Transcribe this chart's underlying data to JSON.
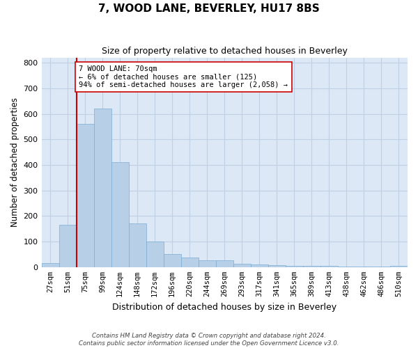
{
  "title": "7, WOOD LANE, BEVERLEY, HU17 8BS",
  "subtitle": "Size of property relative to detached houses in Beverley",
  "xlabel": "Distribution of detached houses by size in Beverley",
  "ylabel": "Number of detached properties",
  "footer_line1": "Contains HM Land Registry data © Crown copyright and database right 2024.",
  "footer_line2": "Contains public sector information licensed under the Open Government Licence v3.0.",
  "categories": [
    "27sqm",
    "51sqm",
    "75sqm",
    "99sqm",
    "124sqm",
    "148sqm",
    "172sqm",
    "196sqm",
    "220sqm",
    "244sqm",
    "269sqm",
    "293sqm",
    "317sqm",
    "341sqm",
    "365sqm",
    "389sqm",
    "413sqm",
    "438sqm",
    "462sqm",
    "486sqm",
    "510sqm"
  ],
  "values": [
    15,
    165,
    560,
    620,
    410,
    170,
    100,
    50,
    38,
    28,
    28,
    12,
    10,
    8,
    5,
    5,
    5,
    3,
    2,
    1,
    5
  ],
  "bar_color": "#b8cfe8",
  "bar_edge_color": "#7aadd4",
  "bar_width": 1.0,
  "grid_color": "#c0d0e4",
  "background_color": "#dce8f5",
  "vline_x": 1.5,
  "vline_color": "#cc0000",
  "annotation_text": "7 WOOD LANE: 70sqm\n← 6% of detached houses are smaller (125)\n94% of semi-detached houses are larger (2,058) →",
  "annotation_box_color": "#ffffff",
  "annotation_box_edge": "#cc0000",
  "ylim": [
    0,
    820
  ],
  "yticks": [
    0,
    100,
    200,
    300,
    400,
    500,
    600,
    700,
    800
  ]
}
